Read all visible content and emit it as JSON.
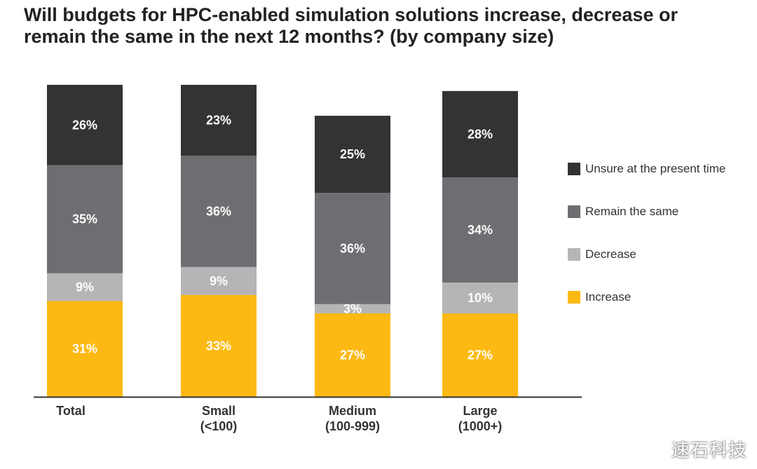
{
  "title_lines": [
    "Will budgets for HPC-enabled simulation solutions increase, decrease or",
    "remain the same in the next 12 months? (by company size)"
  ],
  "watermark": "速石科技",
  "chart_data": {
    "type": "bar",
    "stacked": true,
    "title": "Will budgets for HPC-enabled simulation solutions increase, decrease or remain the same in the next 12 months? (by company size)",
    "categories": [
      [
        "Total"
      ],
      [
        "Small",
        "(<100)"
      ],
      [
        "Medium",
        "(100-999)"
      ],
      [
        "Large",
        "(1000+)"
      ]
    ],
    "series": [
      {
        "name": "Increase",
        "color": "#fdb913",
        "values": [
          31,
          33,
          27,
          27
        ]
      },
      {
        "name": "Decrease",
        "color": "#b5b5b7",
        "values": [
          9,
          9,
          3,
          10
        ]
      },
      {
        "name": "Remain the same",
        "color": "#6d6e71",
        "values": [
          35,
          36,
          36,
          34
        ]
      },
      {
        "name": "Unsure at the present time",
        "color": "#333333",
        "values": [
          26,
          23,
          25,
          28
        ]
      }
    ],
    "value_suffix": "%",
    "label_color": "#ffffff",
    "baseline_color": "#333333",
    "legend_order": [
      "Unsure at the present time",
      "Remain the same",
      "Decrease",
      "Increase"
    ],
    "legend_position": "right",
    "grid": false,
    "ylim": [
      0,
      101
    ]
  }
}
